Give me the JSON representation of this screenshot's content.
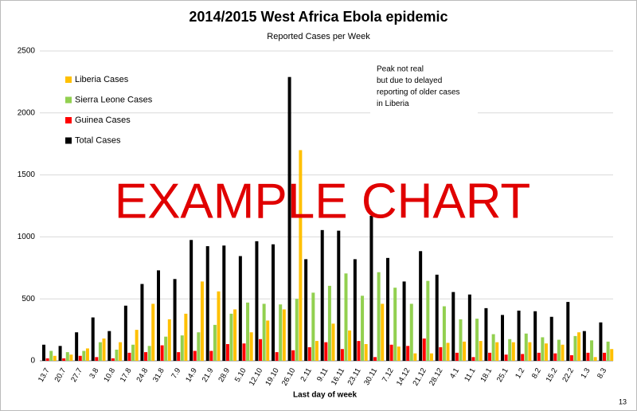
{
  "chart_data": {
    "type": "bar",
    "title": "2014/2015 West Africa Ebola epidemic",
    "subtitle": "Reported Cases per Week",
    "x_label": "Last day of week",
    "categories": [
      "13.7",
      "20.7",
      "27.7",
      "3.8",
      "10.8",
      "17.8",
      "24.8",
      "31.8",
      "7.9",
      "14.9",
      "21.9",
      "28.9",
      "5.10",
      "12.10",
      "19.10",
      "26.10",
      "2.11",
      "9.11",
      "16.11",
      "23.11",
      "30.11",
      "7.12",
      "14.12",
      "21.12",
      "28.12",
      "4.1",
      "11.1",
      "18.1",
      "25.1",
      "1.2",
      "8.2",
      "15.2",
      "22.2",
      "1.3",
      "8.3"
    ],
    "series": [
      {
        "name": "Liberia Cases",
        "color": "#ffc000",
        "values": [
          40,
          50,
          100,
          180,
          150,
          250,
          460,
          335,
          380,
          640,
          560,
          415,
          230,
          325,
          415,
          1700,
          160,
          300,
          245,
          135,
          460,
          115,
          60,
          60,
          145,
          155,
          160,
          150,
          150,
          150,
          140,
          130,
          230,
          30,
          95
        ]
      },
      {
        "name": "Sierra Leone Cases",
        "color": "#92d050",
        "values": [
          80,
          70,
          80,
          150,
          90,
          130,
          120,
          195,
          205,
          230,
          290,
          380,
          470,
          460,
          455,
          500,
          550,
          605,
          705,
          525,
          715,
          590,
          460,
          645,
          440,
          335,
          340,
          215,
          175,
          220,
          190,
          170,
          200,
          165,
          155
        ]
      },
      {
        "name": "Guinea Cases",
        "color": "#ff0000",
        "values": [
          20,
          20,
          40,
          30,
          20,
          65,
          70,
          125,
          70,
          80,
          80,
          135,
          140,
          175,
          70,
          85,
          110,
          150,
          95,
          160,
          30,
          130,
          120,
          180,
          110,
          65,
          30,
          65,
          50,
          55,
          65,
          60,
          45,
          65,
          65
        ]
      },
      {
        "name": "Total Cases",
        "color": "#000000",
        "values": [
          130,
          120,
          230,
          350,
          240,
          445,
          620,
          730,
          660,
          975,
          925,
          930,
          845,
          965,
          940,
          2290,
          820,
          1055,
          1050,
          820,
          1170,
          830,
          640,
          885,
          695,
          555,
          535,
          425,
          370,
          405,
          400,
          355,
          475,
          240,
          310
        ]
      }
    ],
    "ylim": [
      0,
      2500
    ],
    "yticks": [
      0,
      500,
      1000,
      1500,
      2000,
      2500
    ],
    "grid": true,
    "annotation": [
      "Peak not real",
      "but due to delayed",
      "reporting of older cases",
      "in Liberia"
    ],
    "watermark": "EXAMPLE CHART",
    "page_number": "13"
  }
}
